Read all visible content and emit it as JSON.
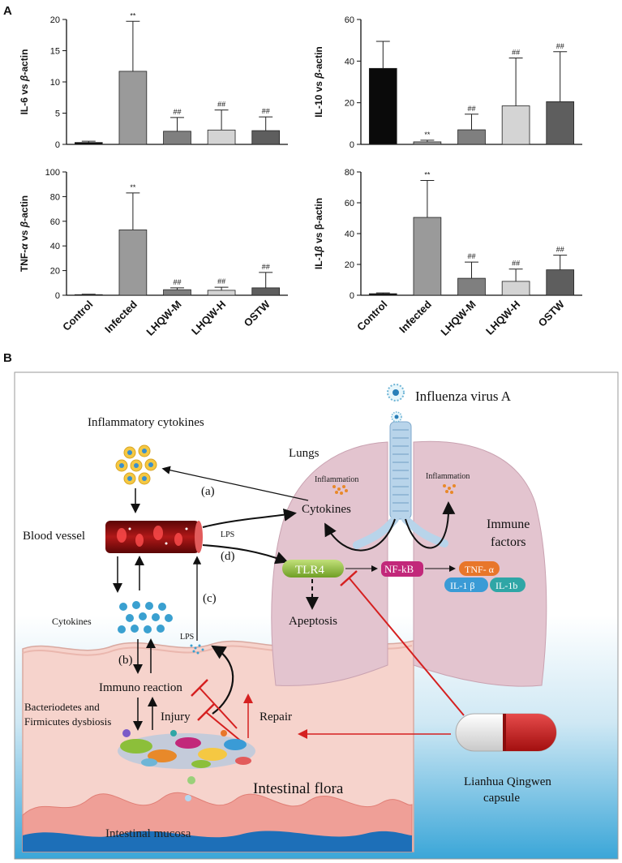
{
  "panel_a": {
    "letter": "A",
    "categories": [
      "Control",
      "Infected",
      "LHQW-M",
      "LHQW-H",
      "OSTW"
    ],
    "bar_colors": [
      "#0a0a0a",
      "#9a9a9a",
      "#7f7f7f",
      "#d4d4d4",
      "#5e5e5e"
    ]
  },
  "chart_data": [
    {
      "type": "bar",
      "ylabel_prefix": "IL-6 vs ",
      "ylabel_italic": "β",
      "ylabel_suffix": "-actin",
      "categories": [
        "Control",
        "Infected",
        "LHQW-M",
        "LHQW-H",
        "OSTW"
      ],
      "values": [
        0.3,
        11.7,
        2.1,
        2.3,
        2.2
      ],
      "errors": [
        0.2,
        8.0,
        2.2,
        3.2,
        2.2
      ],
      "annotations": [
        "",
        "**",
        "##",
        "##",
        "##"
      ],
      "ylim": [
        0,
        20
      ],
      "yticks": [
        0,
        5,
        10,
        15,
        20
      ]
    },
    {
      "type": "bar",
      "ylabel_prefix": "IL-10 vs ",
      "ylabel_italic": "β",
      "ylabel_suffix": "-actin",
      "categories": [
        "Control",
        "Infected",
        "LHQW-M",
        "LHQW-H",
        "OSTW"
      ],
      "values": [
        36.5,
        1.2,
        7.0,
        18.5,
        20.5
      ],
      "errors": [
        13.0,
        0.8,
        7.5,
        23.0,
        24.0
      ],
      "annotations": [
        "",
        "**",
        "##",
        "##",
        "##"
      ],
      "ylim": [
        0,
        60
      ],
      "yticks": [
        0,
        20,
        40,
        60
      ]
    },
    {
      "type": "bar",
      "ylabel_prefix": "TNF-",
      "ylabel_italic": "α",
      "ylabel_mid": " vs ",
      "ylabel_italic2": "β",
      "ylabel_suffix": "-actin",
      "categories": [
        "Control",
        "Infected",
        "LHQW-M",
        "LHQW-H",
        "OSTW"
      ],
      "values": [
        0.5,
        53.0,
        4.5,
        4.0,
        6.0
      ],
      "errors": [
        0.3,
        30.0,
        1.5,
        2.5,
        12.5
      ],
      "annotations": [
        "",
        "**",
        "##",
        "##",
        "##"
      ],
      "ylim": [
        0,
        100
      ],
      "yticks": [
        0,
        20,
        40,
        60,
        80,
        100
      ]
    },
    {
      "type": "bar",
      "ylabel_prefix": "IL-1",
      "ylabel_italic": "β",
      "ylabel_suffix": " vs β-actin",
      "categories": [
        "Control",
        "Infected",
        "LHQW-M",
        "LHQW-H",
        "OSTW"
      ],
      "values": [
        1.0,
        50.5,
        11.0,
        9.0,
        16.5
      ],
      "errors": [
        0.5,
        24.0,
        10.5,
        8.0,
        9.5
      ],
      "annotations": [
        "",
        "**",
        "##",
        "##",
        "##"
      ],
      "ylim": [
        0,
        80
      ],
      "yticks": [
        0,
        20,
        40,
        60,
        80
      ]
    }
  ],
  "panel_b": {
    "letter": "B",
    "labels": {
      "virus": "Influenza virus A",
      "inflammatory_cytokines": "Inflammatory cytokines",
      "lungs": "Lungs",
      "inflammation_left": "Inflammation",
      "inflammation_right": "Inflammation",
      "cytokines_lung": "Cytokines",
      "immune_factors_1": "Immune",
      "immune_factors_2": "factors",
      "blood_vessel": "Blood vessel",
      "lps_top": "LPS",
      "step_a": "(a)",
      "step_b": "(b)",
      "step_c": "(c)",
      "step_d": "(d)",
      "tlr4": "TLR4",
      "nfkb": "NF-kB",
      "tnf": "TNF- α",
      "il1b": "IL-1 β",
      "il1b2": "IL-1b",
      "apoptosis": "Apeptosis",
      "cytokines_gut": "Cytokines",
      "lps_gut": "LPS",
      "immuno_reaction": "Immuno reaction",
      "dysbiosis_1": "Bacteriodetes and",
      "dysbiosis_2": "Firmicutes dysbiosis",
      "injury": "Injury",
      "repair": "Repair",
      "flora": "Intestinal flora",
      "mucosa": "Intestinal mucosa",
      "capsule_1": "Lianhua Qingwen",
      "capsule_2": "capsule"
    },
    "colors": {
      "lung": "#e3c4cf",
      "vessel": "#8c1010",
      "tlr4": "#8cbf3a",
      "nfkb": "#c2287a",
      "tnf": "#e8762a",
      "il1b": "#3a9bd6",
      "il1b2": "#2fa6a6",
      "cytokine_dot": "#3aa0d0",
      "inhibit": "#d52020",
      "capsule_red": "#c81818"
    }
  }
}
